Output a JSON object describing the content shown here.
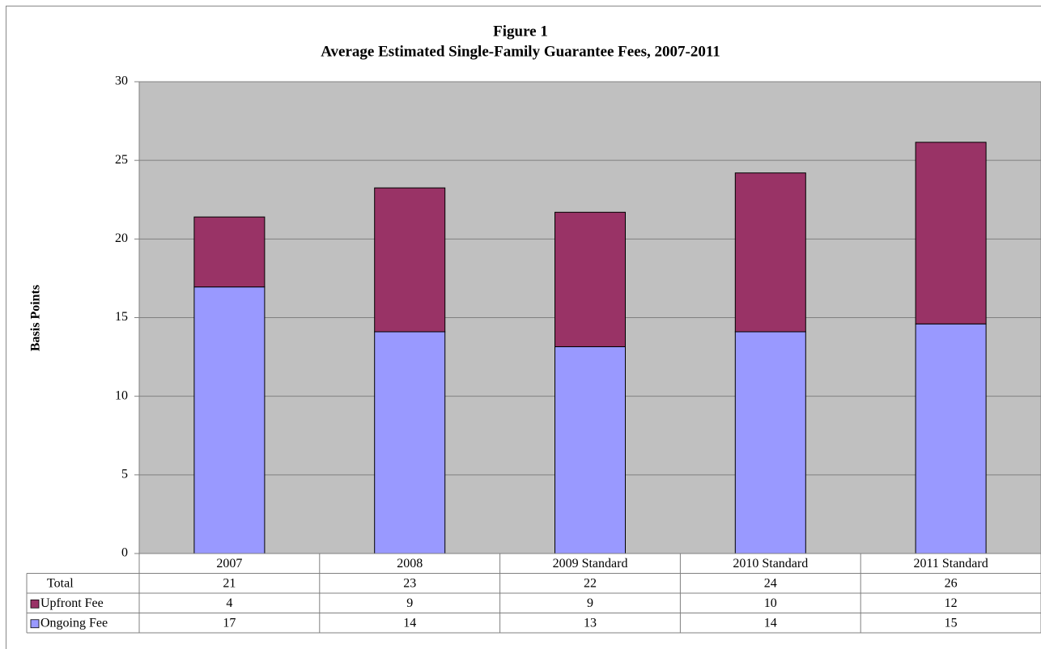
{
  "chart_data": {
    "type": "stacked-bar",
    "title": "Figure 1",
    "subtitle": "Average Estimated Single-Family Guarantee Fees, 2007-2011",
    "y_label": "Basis Points",
    "categories": [
      "2007",
      "2008",
      "2009 Standard",
      "2010 Standard",
      "2011 Standard"
    ],
    "series": [
      {
        "name": "Ongoing Fee",
        "color": "#9999ff",
        "values": [
          16.95,
          14.1,
          13.15,
          14.1,
          14.6
        ],
        "value_labels": [
          "17",
          "14",
          "13",
          "14",
          "15"
        ]
      },
      {
        "name": "Upfront Fee",
        "color": "#993366",
        "values": [
          4.45,
          9.15,
          8.55,
          10.1,
          11.55
        ],
        "value_labels": [
          "4",
          "9",
          "9",
          "10",
          "12"
        ]
      }
    ],
    "total_row": {
      "name": "Total",
      "values": [
        21,
        23,
        22,
        24,
        26
      ]
    },
    "ylim": [
      0,
      30
    ],
    "yticks": [
      0,
      5,
      10,
      15,
      20,
      25,
      30
    ],
    "grid": true
  }
}
